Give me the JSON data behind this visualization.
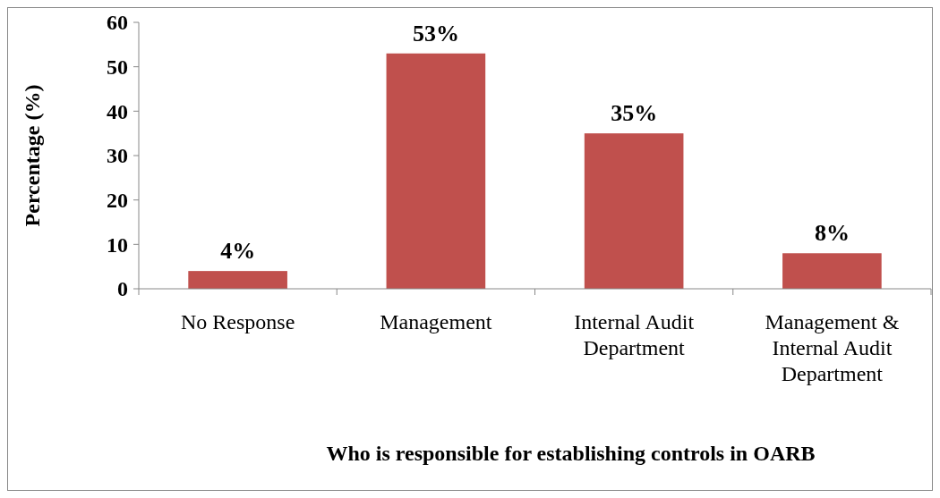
{
  "chart_data": {
    "type": "bar",
    "xlabel": "Who is responsible for establishing controls in OARB",
    "ylabel": "Percentage (%)",
    "categories": [
      "No Response",
      "Management",
      "Internal Audit Department",
      "Management & Internal Audit Department"
    ],
    "values": [
      4,
      53,
      35,
      8
    ],
    "color": "#c0504d",
    "value_labels": [
      "4%",
      "53%",
      "35%",
      "8%"
    ],
    "ylim": [
      0,
      60
    ],
    "yticks": [
      0,
      10,
      20,
      30,
      40,
      50,
      60
    ],
    "grid": false
  }
}
